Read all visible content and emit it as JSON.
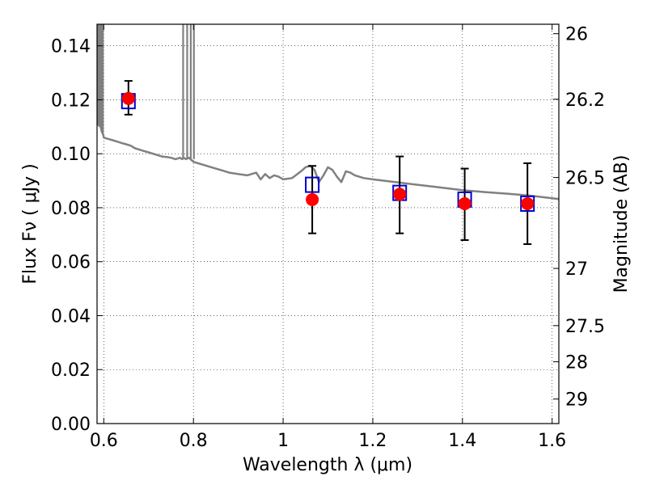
{
  "chart_data": {
    "type": "scatter",
    "title": "",
    "xlabel": "Wavelength  λ (μm)",
    "ylabel": "Flux  Fν  ( μJy )",
    "ylabel_right": "Magnitude (AB)",
    "xlim": [
      0.585,
      1.615
    ],
    "ylim": [
      0.0,
      0.148
    ],
    "grid": true,
    "x_ticks": [
      0.6,
      0.8,
      1.0,
      1.2,
      1.4,
      1.6
    ],
    "x_tick_labels": [
      "0.6",
      "0.8",
      "1",
      "1.2",
      "1.4",
      "1.6"
    ],
    "y_ticks": [
      0.0,
      0.02,
      0.04,
      0.06,
      0.08,
      0.1,
      0.12,
      0.14
    ],
    "y_tick_labels": [
      "0.00",
      "0.02",
      "0.04",
      "0.06",
      "0.08",
      "0.10",
      "0.12",
      "0.14"
    ],
    "right_ticks": [
      {
        "label": "26",
        "flux": 0.1445
      },
      {
        "label": "26.2",
        "flux": 0.1202
      },
      {
        "label": "26.5",
        "flux": 0.0912
      },
      {
        "label": "27",
        "flux": 0.0575
      },
      {
        "label": "27.5",
        "flux": 0.0363
      },
      {
        "label": "28",
        "flux": 0.0229
      },
      {
        "label": "29",
        "flux": 0.0091
      }
    ],
    "series": [
      {
        "kind": "line",
        "color": "#808080",
        "x": [
          0.585,
          0.593,
          0.596,
          0.599,
          0.6,
          0.61,
          0.62,
          0.63,
          0.64,
          0.65,
          0.66,
          0.67,
          0.68,
          0.69,
          0.7,
          0.71,
          0.72,
          0.73,
          0.74,
          0.75,
          0.76,
          0.77,
          0.775,
          0.779,
          0.783,
          0.79,
          0.8,
          0.81,
          0.82,
          0.84,
          0.86,
          0.88,
          0.9,
          0.92,
          0.94,
          0.95,
          0.96,
          0.97,
          0.98,
          0.99,
          1.0,
          1.02,
          1.04,
          1.05,
          1.06,
          1.07,
          1.08,
          1.09,
          1.1,
          1.11,
          1.12,
          1.13,
          1.14,
          1.15,
          1.16,
          1.18,
          1.2,
          1.25,
          1.3,
          1.35,
          1.4,
          1.45,
          1.5,
          1.55,
          1.6,
          1.615
        ],
        "y": [
          0.111,
          0.11,
          0.108,
          0.107,
          0.106,
          0.1055,
          0.105,
          0.1045,
          0.104,
          0.1035,
          0.103,
          0.102,
          0.1015,
          0.101,
          0.1005,
          0.1,
          0.0995,
          0.099,
          0.0988,
          0.0985,
          0.098,
          0.0985,
          0.098,
          0.0985,
          0.098,
          0.0985,
          0.097,
          0.0965,
          0.096,
          0.095,
          0.094,
          0.093,
          0.0925,
          0.092,
          0.093,
          0.0905,
          0.0925,
          0.091,
          0.092,
          0.0915,
          0.0905,
          0.091,
          0.0935,
          0.095,
          0.0955,
          0.094,
          0.0895,
          0.092,
          0.095,
          0.094,
          0.0915,
          0.0895,
          0.0935,
          0.093,
          0.092,
          0.091,
          0.0905,
          0.0895,
          0.0885,
          0.0875,
          0.0865,
          0.0858,
          0.0852,
          0.0845,
          0.0835,
          0.0832
        ]
      },
      {
        "kind": "spikes",
        "color": "#808080",
        "x": [
          0.586,
          0.589,
          0.592,
          0.595,
          0.598,
          0.777,
          0.786,
          0.794,
          0.801
        ],
        "y_from": [
          0.111,
          0.111,
          0.11,
          0.108,
          0.107,
          0.0985,
          0.0982,
          0.098,
          0.098
        ]
      },
      {
        "kind": "boxes",
        "color": "#0000cc",
        "x": [
          0.655,
          1.065,
          1.26,
          1.405,
          1.545
        ],
        "y": [
          0.1195,
          0.0885,
          0.0855,
          0.083,
          0.0815
        ]
      },
      {
        "kind": "points",
        "color": "#ff0000",
        "x": [
          0.655,
          1.065,
          1.26,
          1.405,
          1.545
        ],
        "y": [
          0.1205,
          0.083,
          0.085,
          0.0815,
          0.0815
        ],
        "yerr_low": [
          0.1145,
          0.0705,
          0.0705,
          0.068,
          0.0665
        ],
        "yerr_high": [
          0.127,
          0.0955,
          0.099,
          0.0945,
          0.0965
        ]
      }
    ]
  }
}
